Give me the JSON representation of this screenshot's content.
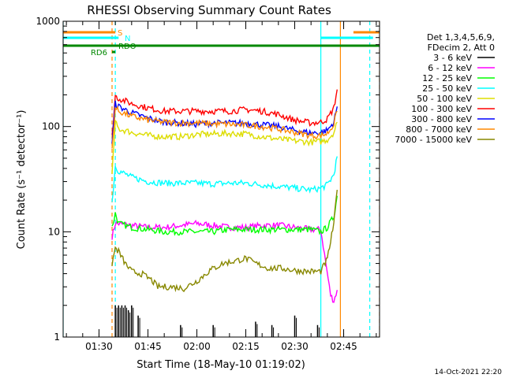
{
  "chart_data": {
    "type": "line",
    "title": "RHESSI Observing Summary Count Rates",
    "ylabel": "Count Rate (s⁻¹ detector⁻¹)",
    "xlabel": "Start Time (18-May-10 01:19:02)",
    "timestamp": "14-Oct-2021 22:20",
    "y_scale": "log",
    "ylim": [
      1,
      1000
    ],
    "xlim": [
      "01:19",
      "02:56"
    ],
    "y_ticks": [
      {
        "value": 1,
        "label": "1"
      },
      {
        "value": 10,
        "label": "10"
      },
      {
        "value": 100,
        "label": "100"
      },
      {
        "value": 1000,
        "label": "1000"
      }
    ],
    "x_ticks": [
      {
        "value": "01:30",
        "label": "01:30"
      },
      {
        "value": "01:45",
        "label": "01:45"
      },
      {
        "value": "02:00",
        "label": "02:00"
      },
      {
        "value": "02:15",
        "label": "02:15"
      },
      {
        "value": "02:30",
        "label": "02:30"
      },
      {
        "value": "02:45",
        "label": "02:45"
      }
    ],
    "legend": {
      "placement": "right",
      "header": [
        "Det 1,3,4,5,6,9,",
        "FDecim 2, Att 0"
      ],
      "entries": [
        {
          "label": "3 - 6 keV",
          "color": "#000000"
        },
        {
          "label": "6 - 12 keV",
          "color": "#ff00ff"
        },
        {
          "label": "12 - 25 keV",
          "color": "#00ff00"
        },
        {
          "label": "25 - 50 keV",
          "color": "#00ffff"
        },
        {
          "label": "50 - 100 keV",
          "color": "#dddd00"
        },
        {
          "label": "100 - 300 keV",
          "color": "#ff0000"
        },
        {
          "label": "300 - 800 keV",
          "color": "#0000ff"
        },
        {
          "label": "800 - 7000 keV",
          "color": "#ff8800"
        },
        {
          "label": "7000 - 15000 keV",
          "color": "#888800"
        }
      ]
    },
    "flags": [
      {
        "label": "S",
        "color": "#ff8800",
        "segments": [
          [
            "01:19",
            "01:35"
          ],
          [
            "02:48",
            "02:56"
          ]
        ]
      },
      {
        "label": "N",
        "color": "#00ffff",
        "segments": [
          [
            "01:19",
            "01:36"
          ],
          [
            "02:38",
            "02:54"
          ]
        ]
      },
      {
        "label": "RDO",
        "color": "#008800",
        "segments": [
          [
            "01:19",
            "02:56"
          ]
        ]
      },
      {
        "label": "RD6",
        "color": "#008800",
        "segments": [
          [
            "01:34",
            "01:35"
          ]
        ]
      }
    ],
    "vlines": [
      {
        "x": "01:19",
        "color": "#00ffff",
        "style": "solid"
      },
      {
        "x": "01:34",
        "color": "#ff8800",
        "style": "dashed"
      },
      {
        "x": "01:35",
        "color": "#00ffff",
        "style": "dashed"
      },
      {
        "x": "02:38",
        "color": "#00ffff",
        "style": "solid"
      },
      {
        "x": "02:44",
        "color": "#ff8800",
        "style": "solid"
      },
      {
        "x": "02:53",
        "color": "#00ffff",
        "style": "dashed"
      },
      {
        "x": "02:56",
        "color": "#ff8800",
        "style": "dashed"
      }
    ],
    "series": [
      {
        "name": "3 - 6 keV",
        "color": "#000000",
        "style": "spikes",
        "points": [
          [
            "01:35",
            2
          ],
          [
            "01:36",
            2
          ],
          [
            "01:37",
            2
          ],
          [
            "01:38",
            2
          ],
          [
            "01:39",
            1.8
          ],
          [
            "01:40",
            2
          ],
          [
            "01:42",
            1.6
          ],
          [
            "01:55",
            1.3
          ],
          [
            "02:05",
            1.3
          ],
          [
            "02:18",
            1.4
          ],
          [
            "02:23",
            1.3
          ],
          [
            "02:30",
            1.6
          ],
          [
            "02:37",
            1.3
          ]
        ]
      },
      {
        "name": "6 - 12 keV",
        "color": "#ff00ff",
        "points": [
          [
            "01:34",
            9
          ],
          [
            "01:35",
            12
          ],
          [
            "01:40",
            11.5
          ],
          [
            "01:45",
            11
          ],
          [
            "01:50",
            11
          ],
          [
            "01:55",
            11.5
          ],
          [
            "02:00",
            12
          ],
          [
            "02:05",
            11.5
          ],
          [
            "02:10",
            11
          ],
          [
            "02:15",
            11
          ],
          [
            "02:20",
            11.5
          ],
          [
            "02:25",
            11.5
          ],
          [
            "02:30",
            11
          ],
          [
            "02:35",
            10.5
          ],
          [
            "02:38",
            10.5
          ],
          [
            "02:41",
            2.5
          ],
          [
            "02:42",
            2.2
          ],
          [
            "02:43",
            2.8
          ]
        ]
      },
      {
        "name": "12 - 25 keV",
        "color": "#00ff00",
        "points": [
          [
            "01:34",
            11
          ],
          [
            "01:35",
            15
          ],
          [
            "01:36",
            12
          ],
          [
            "01:40",
            11
          ],
          [
            "01:45",
            10.5
          ],
          [
            "01:50",
            10
          ],
          [
            "01:55",
            10
          ],
          [
            "02:00",
            10
          ],
          [
            "02:05",
            10
          ],
          [
            "02:10",
            10.5
          ],
          [
            "02:15",
            10.5
          ],
          [
            "02:20",
            10.5
          ],
          [
            "02:25",
            10.5
          ],
          [
            "02:30",
            10.5
          ],
          [
            "02:35",
            10.5
          ],
          [
            "02:38",
            10
          ],
          [
            "02:40",
            11
          ],
          [
            "02:42",
            14
          ],
          [
            "02:43",
            22
          ]
        ]
      },
      {
        "name": "25 - 50 keV",
        "color": "#00ffff",
        "points": [
          [
            "01:34",
            19
          ],
          [
            "01:35",
            42
          ],
          [
            "01:36",
            38
          ],
          [
            "01:40",
            33
          ],
          [
            "01:45",
            30
          ],
          [
            "01:50",
            29
          ],
          [
            "01:55",
            29
          ],
          [
            "02:00",
            29
          ],
          [
            "02:05",
            28.5
          ],
          [
            "02:10",
            29
          ],
          [
            "02:15",
            29
          ],
          [
            "02:20",
            28
          ],
          [
            "02:25",
            27
          ],
          [
            "02:30",
            26
          ],
          [
            "02:35",
            25
          ],
          [
            "02:38",
            26
          ],
          [
            "02:40",
            28
          ],
          [
            "02:42",
            35
          ],
          [
            "02:43",
            52
          ]
        ]
      },
      {
        "name": "50 - 100 keV",
        "color": "#dddd00",
        "points": [
          [
            "01:34",
            35
          ],
          [
            "01:35",
            110
          ],
          [
            "01:36",
            95
          ],
          [
            "01:40",
            88
          ],
          [
            "01:45",
            82
          ],
          [
            "01:50",
            80
          ],
          [
            "01:55",
            80
          ],
          [
            "02:00",
            84
          ],
          [
            "02:05",
            85
          ],
          [
            "02:10",
            86
          ],
          [
            "02:15",
            85
          ],
          [
            "02:20",
            80
          ],
          [
            "02:25",
            76
          ],
          [
            "02:30",
            73
          ],
          [
            "02:35",
            71
          ],
          [
            "02:38",
            72
          ],
          [
            "02:40",
            75
          ],
          [
            "02:42",
            88
          ],
          [
            "02:43",
            110
          ]
        ]
      },
      {
        "name": "100 - 300 keV",
        "color": "#ff0000",
        "points": [
          [
            "01:34",
            80
          ],
          [
            "01:35",
            195
          ],
          [
            "01:36",
            185
          ],
          [
            "01:40",
            165
          ],
          [
            "01:45",
            150
          ],
          [
            "01:50",
            140
          ],
          [
            "01:55",
            140
          ],
          [
            "02:00",
            140
          ],
          [
            "02:05",
            140
          ],
          [
            "02:10",
            140
          ],
          [
            "02:15",
            145
          ],
          [
            "02:20",
            140
          ],
          [
            "02:25",
            130
          ],
          [
            "02:30",
            115
          ],
          [
            "02:35",
            108
          ],
          [
            "02:38",
            110
          ],
          [
            "02:40",
            118
          ],
          [
            "02:42",
            150
          ],
          [
            "02:43",
            225
          ]
        ]
      },
      {
        "name": "300 - 800 keV",
        "color": "#0000ff",
        "points": [
          [
            "01:34",
            70
          ],
          [
            "01:35",
            165
          ],
          [
            "01:36",
            155
          ],
          [
            "01:40",
            135
          ],
          [
            "01:45",
            120
          ],
          [
            "01:50",
            110
          ],
          [
            "01:55",
            108
          ],
          [
            "02:00",
            105
          ],
          [
            "02:05",
            108
          ],
          [
            "02:10",
            108
          ],
          [
            "02:15",
            108
          ],
          [
            "02:20",
            104
          ],
          [
            "02:25",
            100
          ],
          [
            "02:30",
            92
          ],
          [
            "02:35",
            87
          ],
          [
            "02:38",
            88
          ],
          [
            "02:40",
            92
          ],
          [
            "02:42",
            110
          ],
          [
            "02:43",
            155
          ]
        ]
      },
      {
        "name": "800 - 7000 keV",
        "color": "#ff8800",
        "points": [
          [
            "01:34",
            60
          ],
          [
            "01:35",
            150
          ],
          [
            "01:36",
            140
          ],
          [
            "01:40",
            125
          ],
          [
            "01:45",
            115
          ],
          [
            "01:50",
            110
          ],
          [
            "01:55",
            108
          ],
          [
            "02:00",
            108
          ],
          [
            "02:05",
            106
          ],
          [
            "02:10",
            105
          ],
          [
            "02:15",
            103
          ],
          [
            "02:20",
            100
          ],
          [
            "02:25",
            95
          ],
          [
            "02:30",
            88
          ],
          [
            "02:35",
            82
          ],
          [
            "02:38",
            82
          ],
          [
            "02:40",
            86
          ],
          [
            "02:42",
            105
          ],
          [
            "02:43",
            140
          ]
        ]
      },
      {
        "name": "7000 - 15000 keV",
        "color": "#888800",
        "points": [
          [
            "01:34",
            5
          ],
          [
            "01:35",
            7
          ],
          [
            "01:36",
            6.5
          ],
          [
            "01:38",
            5
          ],
          [
            "01:40",
            4.2
          ],
          [
            "01:43",
            4
          ],
          [
            "01:46",
            3.5
          ],
          [
            "01:48",
            3
          ],
          [
            "01:52",
            3
          ],
          [
            "01:56",
            2.9
          ],
          [
            "02:00",
            3.4
          ],
          [
            "02:04",
            4.3
          ],
          [
            "02:08",
            5
          ],
          [
            "02:12",
            5.3
          ],
          [
            "02:15",
            5.6
          ],
          [
            "02:18",
            5
          ],
          [
            "02:22",
            4.5
          ],
          [
            "02:26",
            4.5
          ],
          [
            "02:30",
            4.3
          ],
          [
            "02:34",
            4.2
          ],
          [
            "02:38",
            4.2
          ],
          [
            "02:40",
            5.5
          ],
          [
            "02:42",
            12
          ],
          [
            "02:43",
            25
          ]
        ]
      }
    ]
  }
}
